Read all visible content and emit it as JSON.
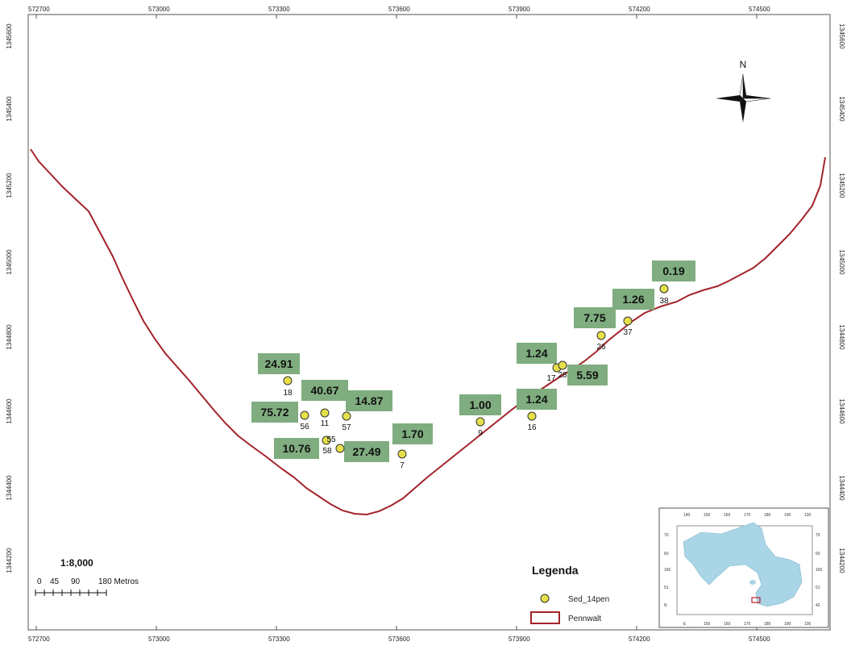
{
  "axes": {
    "x_labels": [
      "572700",
      "573000",
      "573300",
      "573600",
      "573900",
      "574200",
      "574500"
    ],
    "y_labels": [
      "1345600",
      "1345400",
      "1345200",
      "1345000",
      "1344800",
      "1344600",
      "1344400",
      "1344200"
    ]
  },
  "north_arrow": {
    "label": "N",
    "icon": "compass-rose-icon"
  },
  "samples": [
    {
      "id": "18",
      "value": "24.91"
    },
    {
      "id": "56",
      "value": "75.72"
    },
    {
      "id": "11",
      "value": "40.67"
    },
    {
      "id": "57",
      "value": "14.87"
    },
    {
      "id": "55",
      "value": "10.76"
    },
    {
      "id": "58",
      "value": "27.49"
    },
    {
      "id": "7",
      "value": "1.70"
    },
    {
      "id": "9",
      "value": "1.00"
    },
    {
      "id": "16",
      "value": "1.24"
    },
    {
      "id": "17",
      "value": "1.24"
    },
    {
      "id": "28",
      "value": "5.59"
    },
    {
      "id": "26",
      "value": "7.75"
    },
    {
      "id": "37",
      "value": "1.26"
    },
    {
      "id": "38",
      "value": "0.19"
    }
  ],
  "legend": {
    "title": "Legenda",
    "items": [
      {
        "label": "Sed_14pen",
        "symbol": "point",
        "color": "#e6e04a"
      },
      {
        "label": "Pennwalt",
        "symbol": "polygon",
        "color": "#a3222a"
      }
    ]
  },
  "scale": {
    "ratio": "1:8,000",
    "ticks": [
      "0",
      "45",
      "90",
      "180 Metros"
    ]
  },
  "inset": {
    "top_labels": [
      "140",
      "150",
      "160",
      "170",
      "180",
      "190",
      "100"
    ],
    "left_labels": [
      "70",
      "60",
      "160",
      "51",
      "N"
    ],
    "right_labels": [
      "70",
      "60",
      "160",
      "51",
      "42"
    ],
    "bottom_labels": [
      "E",
      "150",
      "160",
      "170",
      "180",
      "190",
      "100"
    ],
    "lake_color": "#a9d5e6"
  },
  "colors": {
    "label_box": "#7fad7f",
    "point_fill": "#e6e04a",
    "boundary": "#a3222a"
  }
}
